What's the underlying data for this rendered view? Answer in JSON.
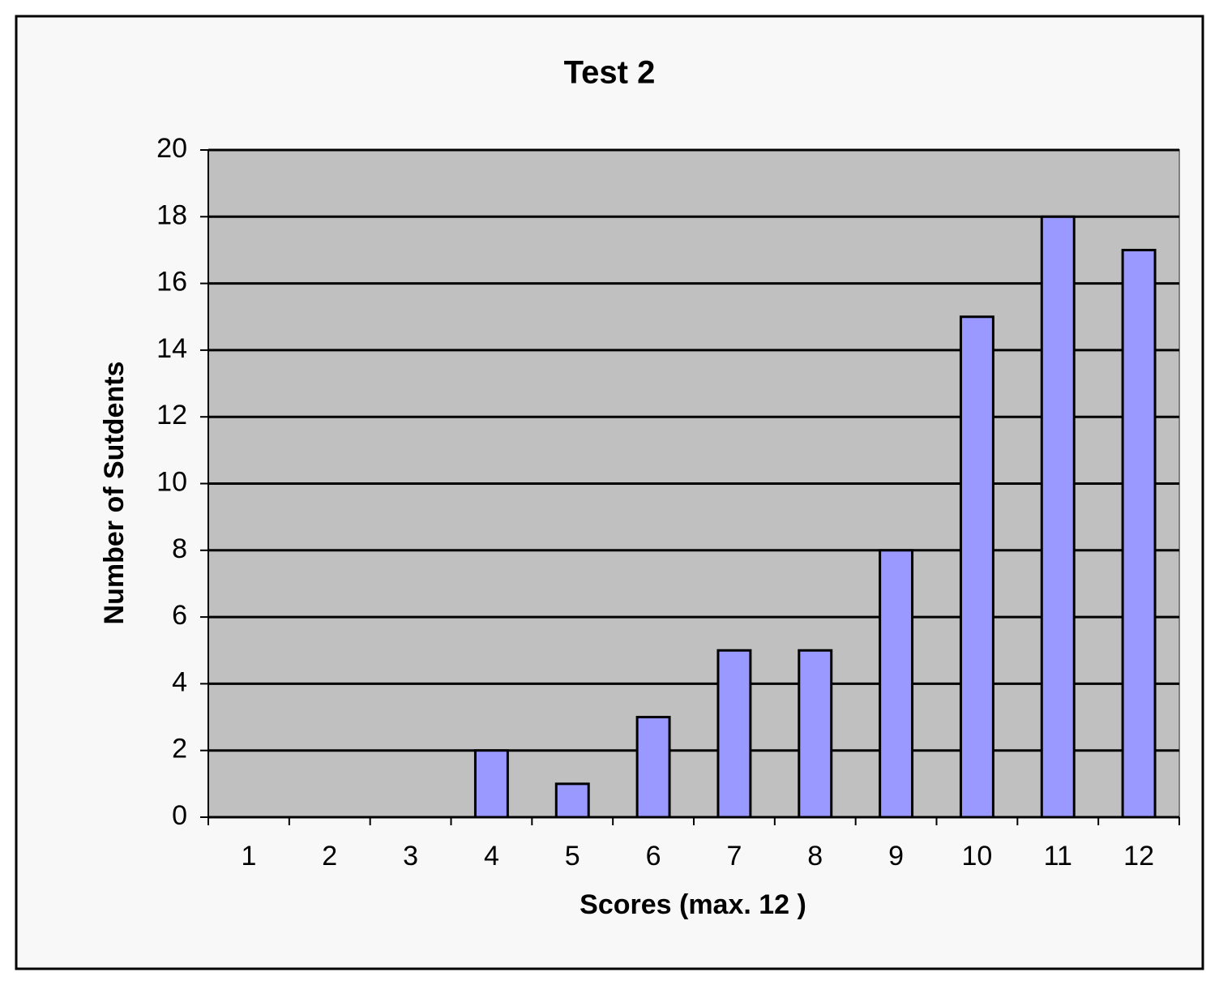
{
  "chart_data": {
    "type": "bar",
    "title": "Test 2",
    "x_label": "Scores (max. 12 )",
    "y_label": "Number of Sutdents",
    "categories": [
      "1",
      "2",
      "3",
      "4",
      "5",
      "6",
      "7",
      "8",
      "9",
      "10",
      "11",
      "12"
    ],
    "values": [
      0,
      0,
      0,
      2,
      1,
      3,
      5,
      5,
      8,
      15,
      18,
      17
    ],
    "color": "#9999ff",
    "ylim": [
      0,
      20
    ],
    "yticks": [
      0,
      2,
      4,
      6,
      8,
      10,
      12,
      14,
      16,
      18,
      20
    ],
    "grid": true
  }
}
